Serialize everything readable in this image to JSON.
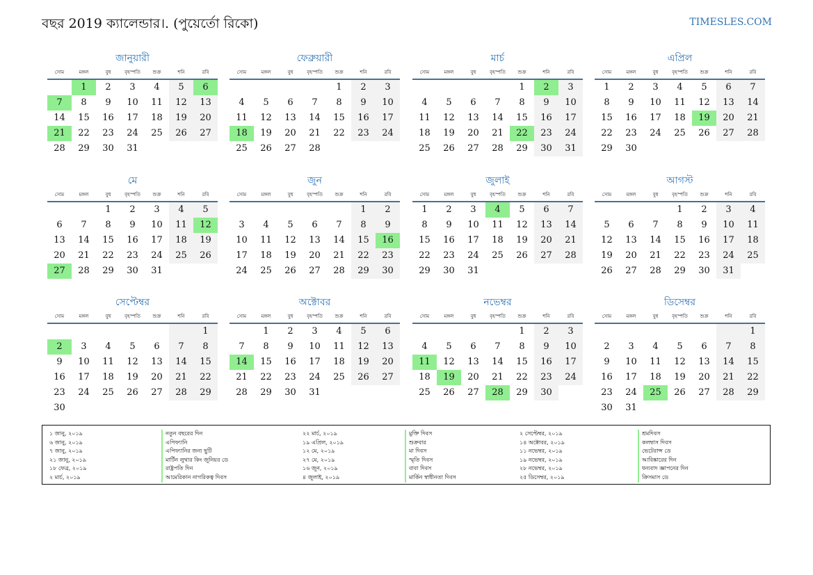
{
  "header": {
    "title": "বছর 2019 ক্যালেন্ডার।. (পুয়ের্তো রিকো)",
    "site": "TIMESLES.COM"
  },
  "weekdays": [
    "সোম",
    "মঙ্গল",
    "বুধ",
    "বৃহস্পতি",
    "শুক্র",
    "শনি",
    "রবি"
  ],
  "months": [
    {
      "name": "জানুয়ারী",
      "start": 1,
      "days": 31,
      "holidays": [
        1,
        6,
        7,
        21
      ]
    },
    {
      "name": "ফেব্রুয়ারী",
      "start": 4,
      "days": 28,
      "holidays": [
        18
      ]
    },
    {
      "name": "মার্চ",
      "start": 4,
      "days": 31,
      "holidays": [
        2,
        22
      ]
    },
    {
      "name": "এপ্রিল",
      "start": 0,
      "days": 30,
      "holidays": [
        19
      ]
    },
    {
      "name": "মে",
      "start": 2,
      "days": 31,
      "holidays": [
        12,
        27
      ]
    },
    {
      "name": "জুন",
      "start": 5,
      "days": 30,
      "holidays": [
        16
      ]
    },
    {
      "name": "জুলাই",
      "start": 0,
      "days": 31,
      "holidays": [
        4
      ]
    },
    {
      "name": "আগস্ট",
      "start": 3,
      "days": 31,
      "holidays": []
    },
    {
      "name": "সেপ্টেম্বর",
      "start": 6,
      "days": 30,
      "holidays": [
        2
      ]
    },
    {
      "name": "অক্টোবর",
      "start": 1,
      "days": 31,
      "holidays": [
        14
      ]
    },
    {
      "name": "নভেম্বর",
      "start": 4,
      "days": 30,
      "holidays": [
        11,
        19,
        28
      ]
    },
    {
      "name": "ডিসেম্বর",
      "start": 6,
      "days": 31,
      "holidays": [
        25
      ]
    }
  ],
  "legend": [
    [
      {
        "date": "১ জানু, ২০১৯",
        "name": "নতুন বছরের দিন"
      },
      {
        "date": "৬ জানু, ২০১৯",
        "name": "এপিফ্যানি"
      },
      {
        "date": "৭ জানু, ২০১৯",
        "name": "এপিফ্যানির জন্য ছুটি"
      },
      {
        "date": "২১ জানু, ২০১৯",
        "name": "মার্টিন লুথার কিং জুনিয়র ডে"
      },
      {
        "date": "১৮ ফেব্র, ২০১৯",
        "name": "রাষ্ট্রপতি দিন"
      },
      {
        "date": "২ মার্চ, ২০১৯",
        "name": "আমেরিকান নাগরিকত্ব দিবস"
      }
    ],
    [
      {
        "date": "২২ মার্চ, ২০১৯",
        "name": "মুক্তি দিবস"
      },
      {
        "date": "১৯ এপ্রিল, ২০১৯",
        "name": "শুক্রবার"
      },
      {
        "date": "১২ মে, ২০১৯",
        "name": "মা দিবস"
      },
      {
        "date": "২৭ মে, ২০১৯",
        "name": "স্মৃতি দিবস"
      },
      {
        "date": "১৬ জুন, ২০১৯",
        "name": "বাবা দিবস"
      },
      {
        "date": "৪ জুলাই, ২০১৯",
        "name": "মার্কিন স্বাধীনতা দিবস"
      }
    ],
    [
      {
        "date": "২ সেপ্টেম্বর, ২০১৯",
        "name": "শ্রমদিবস"
      },
      {
        "date": "১৪ অক্টোবর, ২০১৯",
        "name": "কলম্বাস দিবস"
      },
      {
        "date": "১১ নভেম্বর, ২০১৯",
        "name": "ভেটেরান্স ডে"
      },
      {
        "date": "১৯ নভেম্বর, ২০১৯",
        "name": "আবিষ্কারের দিন"
      },
      {
        "date": "২৮ নভেম্বর, ২০১৯",
        "name": "ধন্যবাদ জ্ঞাপনের দিন"
      },
      {
        "date": "২৫ ডিসেম্বর, ২০১৯",
        "name": "ক্রিসমাস ডে"
      }
    ]
  ]
}
